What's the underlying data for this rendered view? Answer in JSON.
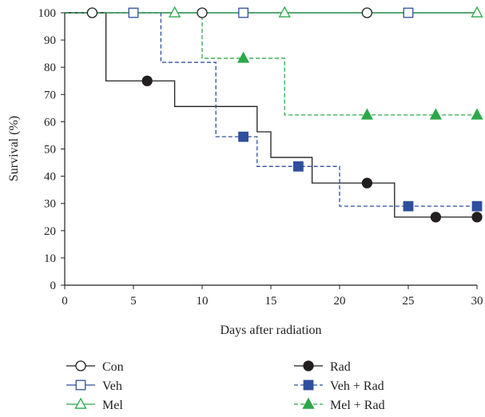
{
  "chart_data": {
    "type": "line",
    "subtype": "kaplan-meier step",
    "title": "",
    "xlabel": "Days after radiation",
    "ylabel": "Survival (%)",
    "xlim": [
      0,
      30
    ],
    "ylim": [
      0,
      100
    ],
    "xticks": [
      0,
      5,
      10,
      15,
      20,
      25,
      30
    ],
    "yticks": [
      0,
      10,
      20,
      30,
      40,
      50,
      60,
      70,
      80,
      90,
      100
    ],
    "grid": false,
    "legend_position": "bottom",
    "series": [
      {
        "name": "Con",
        "color": "#231f20",
        "dash": "solid",
        "marker": "circle",
        "filled": false,
        "steps": [
          [
            0,
            100
          ],
          [
            30,
            100
          ]
        ],
        "markers": [
          [
            2,
            100
          ],
          [
            10,
            100
          ],
          [
            22,
            100
          ]
        ]
      },
      {
        "name": "Veh",
        "color": "#2e4f9e",
        "dash": "solid",
        "marker": "square",
        "filled": false,
        "steps": [
          [
            0,
            100
          ],
          [
            30,
            100
          ]
        ],
        "markers": [
          [
            5,
            100
          ],
          [
            13,
            100
          ],
          [
            25,
            100
          ]
        ]
      },
      {
        "name": "Mel",
        "color": "#2ca84a",
        "dash": "solid",
        "marker": "triangle",
        "filled": false,
        "steps": [
          [
            0,
            100
          ],
          [
            30,
            100
          ]
        ],
        "markers": [
          [
            8,
            100
          ],
          [
            16,
            100
          ],
          [
            30,
            100
          ]
        ]
      },
      {
        "name": "Rad",
        "color": "#231f20",
        "dash": "solid",
        "marker": "circle",
        "filled": true,
        "steps": [
          [
            0,
            100
          ],
          [
            3,
            75
          ],
          [
            8,
            65.6
          ],
          [
            14,
            56.3
          ],
          [
            15,
            46.9
          ],
          [
            18,
            37.5
          ],
          [
            24,
            25
          ],
          [
            30,
            25
          ]
        ],
        "markers": [
          [
            6,
            75
          ],
          [
            22,
            37.5
          ],
          [
            27,
            25
          ],
          [
            30,
            25
          ]
        ]
      },
      {
        "name": "Veh + Rad",
        "color": "#2e4f9e",
        "dash": "dashed",
        "marker": "square",
        "filled": true,
        "steps": [
          [
            0,
            100
          ],
          [
            7,
            81.8
          ],
          [
            11,
            54.5
          ],
          [
            14,
            43.6
          ],
          [
            20,
            29
          ],
          [
            30,
            29
          ]
        ],
        "markers": [
          [
            13,
            54.5
          ],
          [
            17,
            43.6
          ],
          [
            25,
            29
          ],
          [
            30,
            29
          ]
        ]
      },
      {
        "name": "Mel + Rad",
        "color": "#2ca84a",
        "dash": "dashed",
        "marker": "triangle",
        "filled": true,
        "steps": [
          [
            0,
            100
          ],
          [
            10,
            83.3
          ],
          [
            16,
            62.5
          ],
          [
            30,
            62.5
          ]
        ],
        "markers": [
          [
            13,
            83.3
          ],
          [
            22,
            62.5
          ],
          [
            27,
            62.5
          ],
          [
            30,
            62.5
          ]
        ]
      }
    ]
  }
}
